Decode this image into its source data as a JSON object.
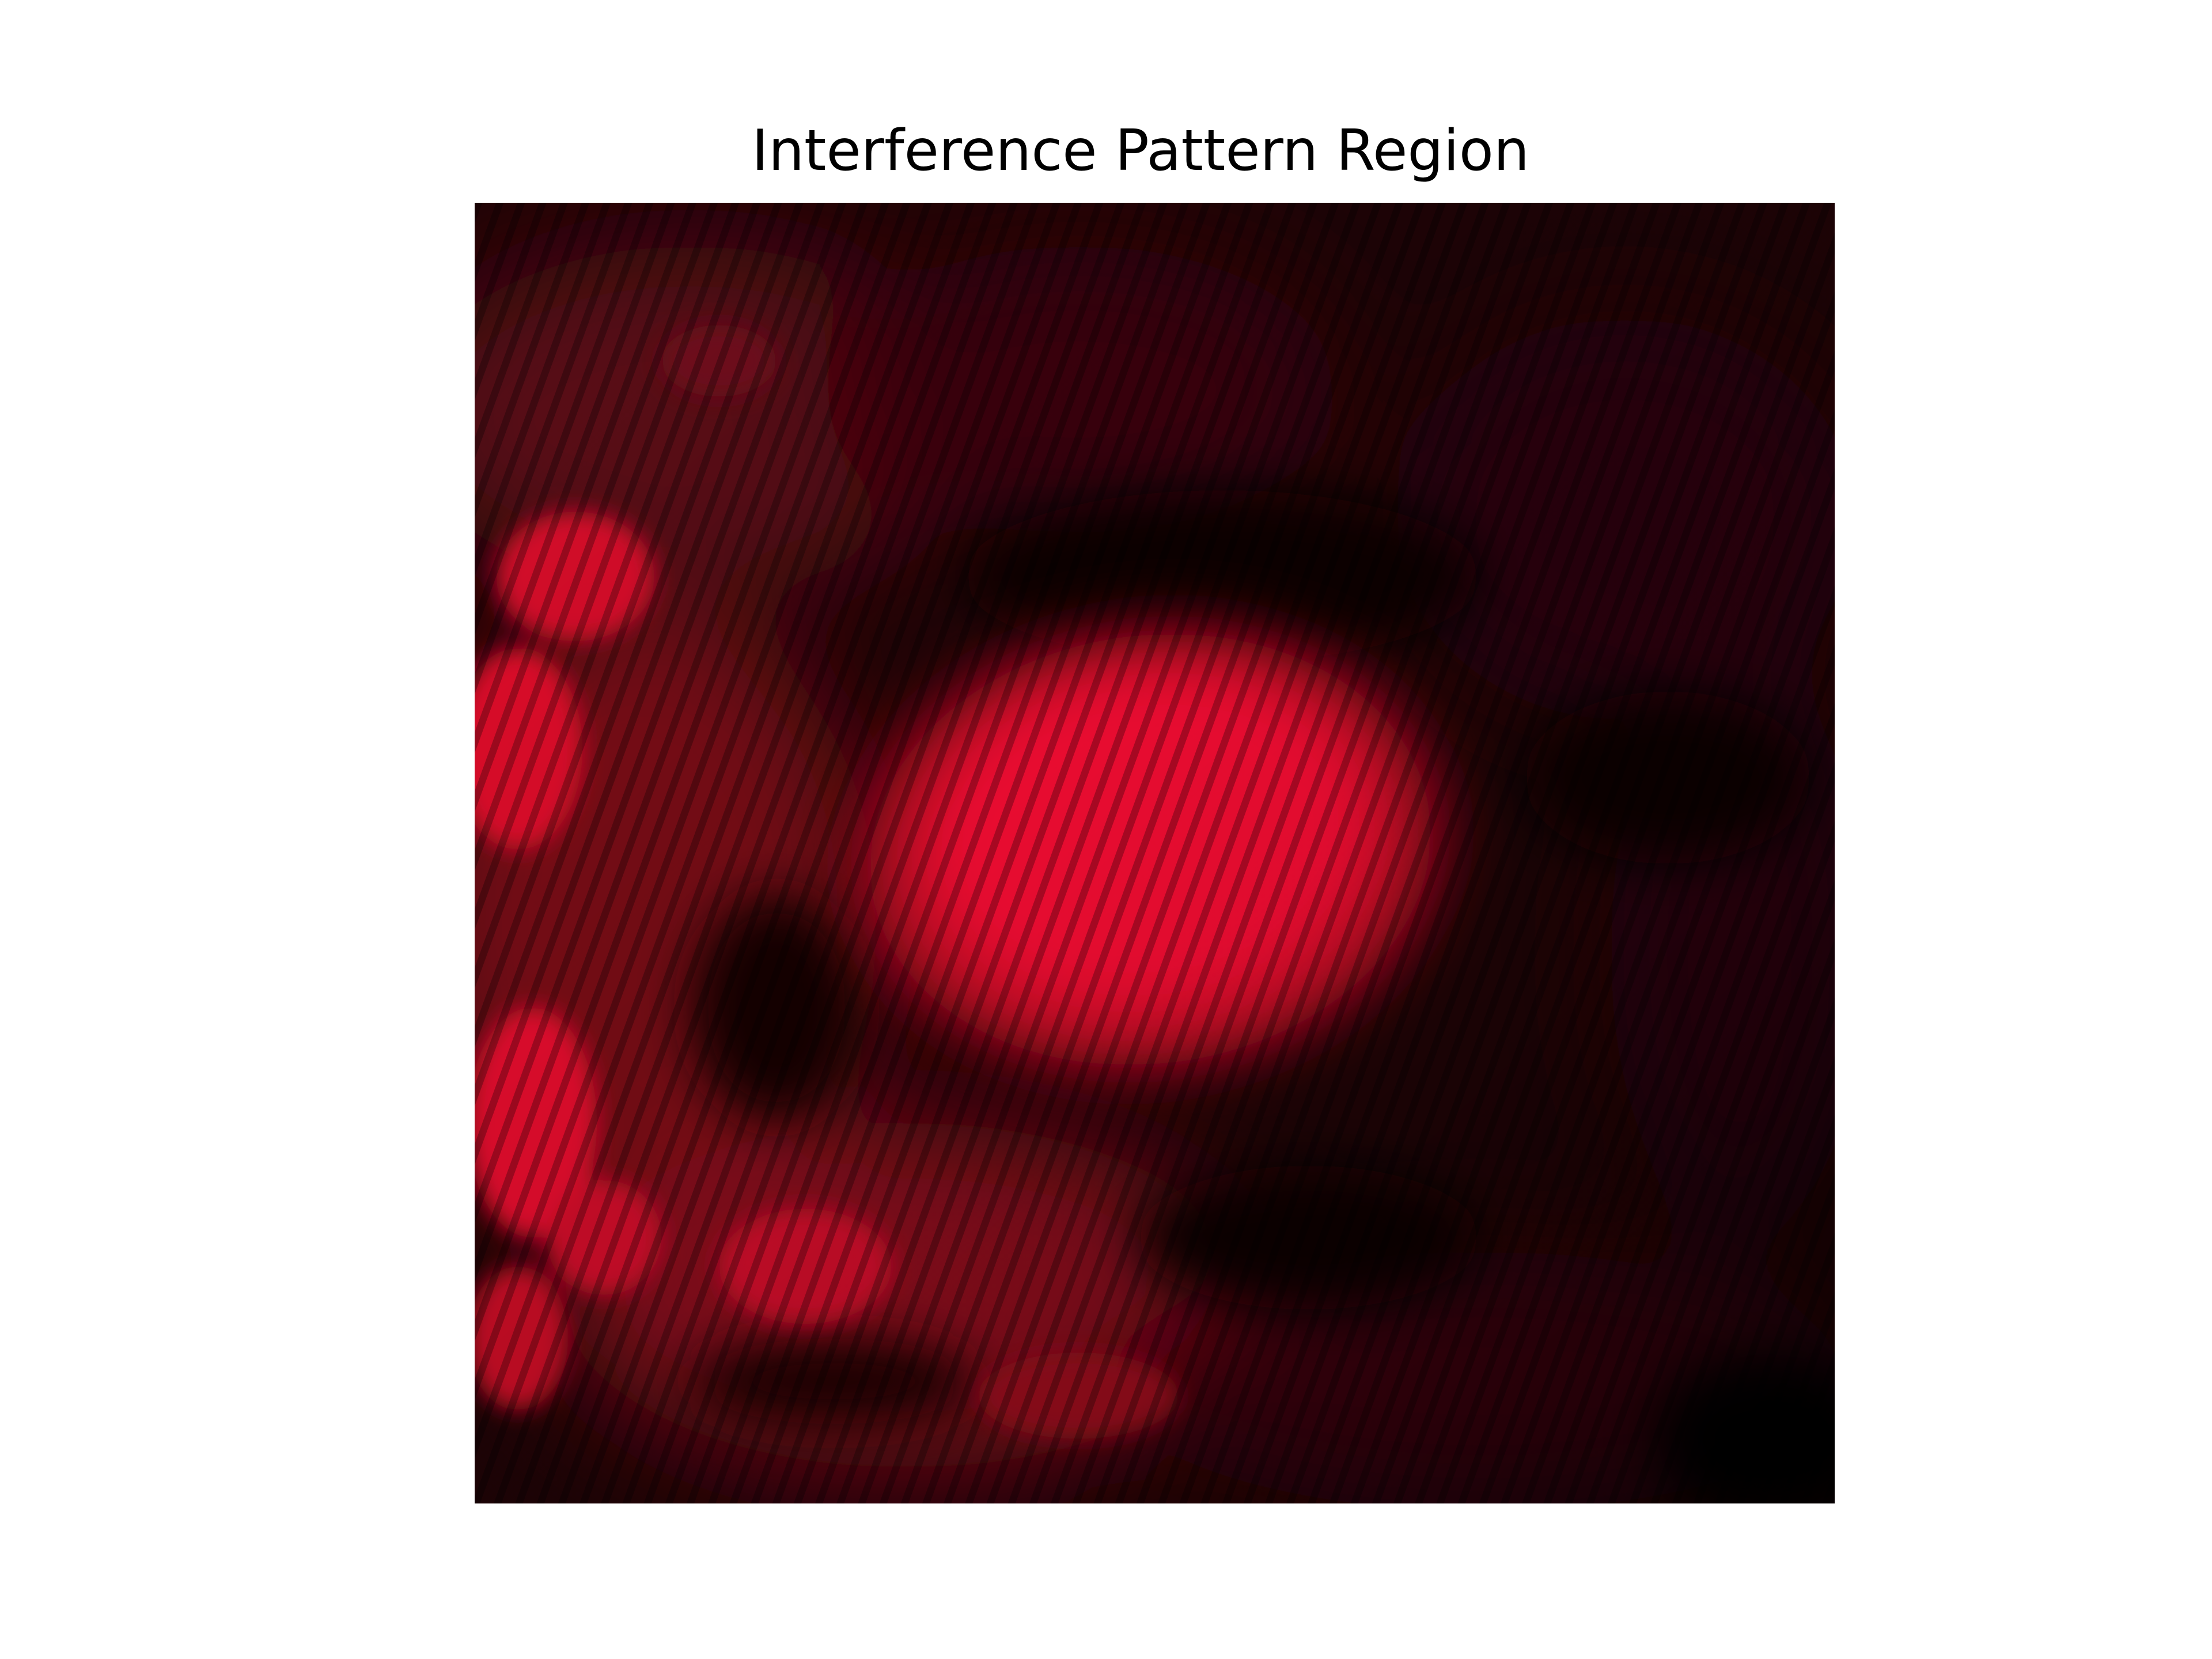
{
  "figure": {
    "title": "Interference Pattern Region"
  },
  "image": {
    "description_icon": "laser-interference-photo",
    "colors": {
      "background_dark": "#1a0204",
      "spot_core": "#ff0a35",
      "spot_edge": "#c20a24",
      "speckle": "#e0102c",
      "shadow": "#0d0102"
    }
  }
}
